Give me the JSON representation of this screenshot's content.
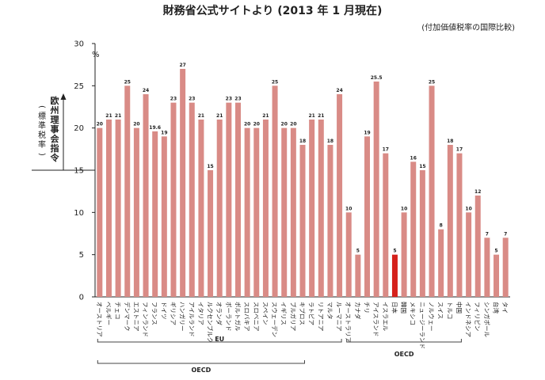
{
  "chart_data": {
    "type": "bar",
    "title": "財務省公式サイトより (2013 年 1 月現在)",
    "subtitle": "(付加価値税率の国際比較)",
    "ylabel": "欧州理事会指令",
    "ylabel_sub": "(標準税率)",
    "y_unit": "%",
    "ylim": [
      0,
      30
    ],
    "yticks": [
      "0",
      "5",
      "10",
      "15",
      "20",
      "25",
      "30"
    ],
    "categories": [
      "オーストリア",
      "ベルギー",
      "チェコ",
      "デンマーク",
      "エストニア",
      "フィンランド",
      "フランス",
      "ドイツ",
      "ギリシア",
      "ハンガリー",
      "アイルランド",
      "イタリア",
      "ルクセンブルク",
      "オランダ",
      "ポーランド",
      "ポルトガル",
      "スロバキア",
      "スロベニア",
      "スペイン",
      "スウェーデン",
      "イギリス",
      "ブルガリア",
      "キプロス",
      "ラトビア",
      "リトアニア",
      "マルタ",
      "ルーマニア",
      "オーストラリア",
      "カナダ",
      "チリ",
      "アイスランド",
      "イスラエル",
      "日本",
      "韓国",
      "メキシコ",
      "ニュージーランド",
      "ノルウェー",
      "スイス",
      "トルコ",
      "中国",
      "インドネシア",
      "フィリピン",
      "シンガポール",
      "台湾",
      "タイ"
    ],
    "values": [
      20,
      21,
      21,
      25,
      20,
      24,
      19.6,
      19,
      23,
      27,
      23,
      21,
      15,
      21,
      23,
      23,
      20,
      20,
      21,
      25,
      20,
      20,
      18,
      21,
      21,
      18,
      24,
      10,
      5,
      19,
      25.5,
      17,
      5,
      10,
      16,
      15,
      25,
      8,
      18,
      17,
      10,
      12,
      7,
      5,
      7
    ],
    "value_labels": [
      "20",
      "21",
      "21",
      "25",
      "20",
      "24",
      "19.6",
      "19",
      "23",
      "27",
      "23",
      "21",
      "15",
      "21",
      "23",
      "23",
      "20",
      "20",
      "21",
      "25",
      "20",
      "20",
      "18",
      "21",
      "21",
      "18",
      "24",
      "10",
      "5",
      "19",
      "25.5",
      "17",
      "5",
      "10",
      "16",
      "15",
      "25",
      "8",
      "18",
      "17",
      "10",
      "12",
      "7",
      "5",
      "7"
    ],
    "highlight": "日本",
    "colors": {
      "bar": "#d98b86",
      "highlight": "#d5211b",
      "axis": "#222222",
      "bracket": "#444444"
    },
    "groups": [
      {
        "label": "EU",
        "from": 0,
        "to": 26
      },
      {
        "label": "OECD",
        "from": 0,
        "to": 22
      },
      {
        "label": "OECD",
        "from": 27,
        "to": 39
      }
    ]
  }
}
